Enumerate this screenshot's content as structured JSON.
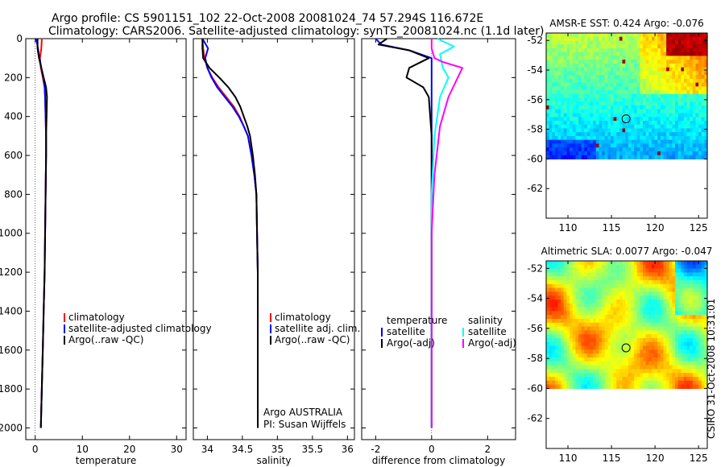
{
  "header": {
    "line1": "Argo profile: CS 5901151_102 22-Oct-2008 20081024_74 57.294S 116.672E",
    "line2": "Climatology: CARS2006. Satellite-adjusted climatology: synTS_20081024.nc (1.1d later)"
  },
  "credit": {
    "agency": "Argo AUSTRALIA",
    "pi": "PI: Susan Wijffels",
    "stamp": "CSIRO 31-Oct-2008 10:31:01"
  },
  "colors": {
    "climatology": "#ff0000",
    "satellite": "#0000ff",
    "argo": "#000000",
    "sal_satellite": "#00ffff",
    "sal_argo": "#ff00ff"
  },
  "chart_data": [
    {
      "id": "temperature",
      "type": "line",
      "xlabel": "temperature",
      "ylabel": "",
      "xlim": [
        -2,
        32
      ],
      "ylim": [
        2060,
        0
      ],
      "xticks": [
        0,
        10,
        20,
        30
      ],
      "yticks": [
        0,
        200,
        400,
        600,
        800,
        1000,
        1200,
        1400,
        1600,
        1800,
        2000
      ],
      "legend": [
        "climatology",
        "satellite-adjusted climatology",
        "Argo(..raw -QC)"
      ],
      "series": [
        {
          "name": "climatology",
          "color": "#ff0000",
          "x": [
            1.4,
            1.3,
            1.0,
            1.2,
            1.6,
            2.0,
            2.1,
            2.2,
            2.3,
            2.3,
            2.2,
            2.1,
            2.0,
            1.8,
            1.6,
            1.5,
            1.4,
            1.3,
            1.2
          ],
          "y": [
            0,
            50,
            100,
            150,
            200,
            250,
            300,
            400,
            500,
            600,
            800,
            1000,
            1200,
            1400,
            1600,
            1700,
            1800,
            1900,
            2000
          ]
        },
        {
          "name": "satellite-adjusted climatology",
          "color": "#0000ff",
          "x": [
            0.2,
            0.6,
            0.9,
            1.3,
            1.7,
            2.0,
            2.1,
            2.2,
            2.3,
            2.3,
            2.2,
            2.1,
            2.0,
            1.8,
            1.6,
            1.5,
            1.4,
            1.3,
            1.2
          ],
          "y": [
            0,
            50,
            100,
            150,
            200,
            250,
            300,
            400,
            500,
            600,
            800,
            1000,
            1200,
            1400,
            1600,
            1700,
            1800,
            1900,
            2000
          ]
        },
        {
          "name": "Argo(..raw -QC)",
          "color": "#000000",
          "x": [
            0.5,
            0.5,
            0.8,
            1.3,
            1.8,
            2.3,
            2.5,
            2.4,
            2.3,
            2.3,
            2.2,
            2.1,
            2.0,
            1.8,
            1.6,
            1.5,
            1.4,
            1.3,
            1.2
          ],
          "y": [
            0,
            50,
            100,
            150,
            200,
            250,
            300,
            400,
            500,
            600,
            800,
            1000,
            1200,
            1400,
            1600,
            1700,
            1800,
            1900,
            2000
          ]
        }
      ]
    },
    {
      "id": "salinity",
      "type": "line",
      "xlabel": "salinity",
      "ylabel": "",
      "xlim": [
        33.8,
        36.1
      ],
      "ylim": [
        2060,
        0
      ],
      "xticks": [
        34,
        34.5,
        35,
        35.5,
        36
      ],
      "xticklabels": [
        "34",
        "34.5",
        "35",
        "35.5",
        "36"
      ],
      "legend": [
        "climatology",
        "satellite adj. clim.",
        "Argo(..raw -QC)"
      ],
      "series": [
        {
          "name": "climatology",
          "color": "#ff0000",
          "x": [
            33.93,
            33.94,
            33.96,
            34.0,
            34.07,
            34.16,
            34.27,
            34.38,
            34.46,
            34.52,
            34.58,
            34.63,
            34.67,
            34.7,
            34.71,
            34.72,
            34.72,
            34.72
          ],
          "y": [
            0,
            50,
            100,
            150,
            200,
            250,
            300,
            350,
            400,
            450,
            500,
            600,
            700,
            800,
            1000,
            1200,
            1500,
            2000
          ]
        },
        {
          "name": "satellite adj. clim.",
          "color": "#0000ff",
          "x": [
            33.93,
            34.01,
            33.97,
            34.0,
            34.06,
            34.14,
            34.25,
            34.36,
            34.45,
            34.52,
            34.58,
            34.63,
            34.67,
            34.7,
            34.71,
            34.72,
            34.72,
            34.72
          ],
          "y": [
            0,
            50,
            100,
            150,
            200,
            250,
            300,
            350,
            400,
            450,
            500,
            600,
            700,
            800,
            1000,
            1200,
            1500,
            2000
          ]
        },
        {
          "name": "Argo(..raw -QC)",
          "color": "#000000",
          "x": [
            33.93,
            33.93,
            33.94,
            34.03,
            34.17,
            34.3,
            34.4,
            34.47,
            34.52,
            34.57,
            34.61,
            34.65,
            34.68,
            34.7,
            34.71,
            34.72,
            34.72,
            34.72
          ],
          "y": [
            0,
            50,
            100,
            150,
            200,
            250,
            300,
            350,
            400,
            450,
            500,
            600,
            700,
            800,
            1000,
            1200,
            1500,
            2000
          ]
        }
      ]
    },
    {
      "id": "difference",
      "type": "line",
      "xlabel": "difference from climatology",
      "ylabel": "",
      "xlim": [
        -2.5,
        3
      ],
      "ylim": [
        2060,
        0
      ],
      "xticks": [
        -2,
        0,
        2
      ],
      "legend_temperature_title": "temperature",
      "legend_salinity_title": "salinity",
      "legend_temperature": [
        "satellite",
        "Argo(-adj)"
      ],
      "legend_salinity": [
        "satellite",
        "Argo(-adj)"
      ],
      "series": [
        {
          "name": "temperature satellite",
          "color": "#0000ff",
          "x": [
            -2.0,
            -1.8,
            -0.8,
            0.0,
            0.0,
            0.0,
            0.0,
            0.0,
            0.0
          ],
          "y": [
            0,
            30,
            60,
            100,
            200,
            400,
            1000,
            1500,
            2000
          ]
        },
        {
          "name": "temperature Argo(-adj)",
          "color": "#000000",
          "x": [
            -1.6,
            -1.9,
            -0.8,
            -0.1,
            -0.8,
            -0.9,
            -0.3,
            -0.1,
            0.0,
            0.0,
            0.0
          ],
          "y": [
            0,
            30,
            60,
            100,
            150,
            200,
            250,
            300,
            500,
            1000,
            2000
          ]
        },
        {
          "name": "salinity satellite",
          "color": "#00ffff",
          "x": [
            0.2,
            0.8,
            0.3,
            0.4,
            0.6,
            0.3,
            0.1,
            0.0,
            0.0,
            0.0
          ],
          "y": [
            0,
            40,
            80,
            150,
            200,
            300,
            500,
            800,
            1500,
            2000
          ]
        },
        {
          "name": "salinity Argo(-adj)",
          "color": "#ff00ff",
          "x": [
            0.0,
            0.0,
            0.1,
            0.4,
            1.1,
            0.6,
            0.3,
            0.1,
            0.0,
            0.0
          ],
          "y": [
            0,
            50,
            100,
            120,
            150,
            300,
            450,
            700,
            1000,
            2000
          ]
        }
      ]
    },
    {
      "id": "sst_map",
      "type": "heatmap",
      "title": "AMSR-E SST: 0.424 Argo: -0.076",
      "xlim": [
        107.5,
        126
      ],
      "ylim": [
        -64,
        -51.5
      ],
      "xticks": [
        110,
        115,
        120,
        125
      ],
      "yticks": [
        -52,
        -54,
        -56,
        -58,
        -60,
        -62
      ],
      "data_extent_ymin": -60,
      "float_position": {
        "lon": 116.672,
        "lat": -57.294
      }
    },
    {
      "id": "sla_map",
      "type": "heatmap",
      "title": "Altimetric SLA: 0.0077 Argo: -0.047",
      "xlim": [
        107.5,
        126
      ],
      "ylim": [
        -64,
        -51.5
      ],
      "xticks": [
        110,
        115,
        120,
        125
      ],
      "yticks": [
        -52,
        -54,
        -56,
        -58,
        -60,
        -62
      ],
      "data_extent_ymin": -60,
      "float_position": {
        "lon": 116.672,
        "lat": -57.294
      }
    }
  ]
}
